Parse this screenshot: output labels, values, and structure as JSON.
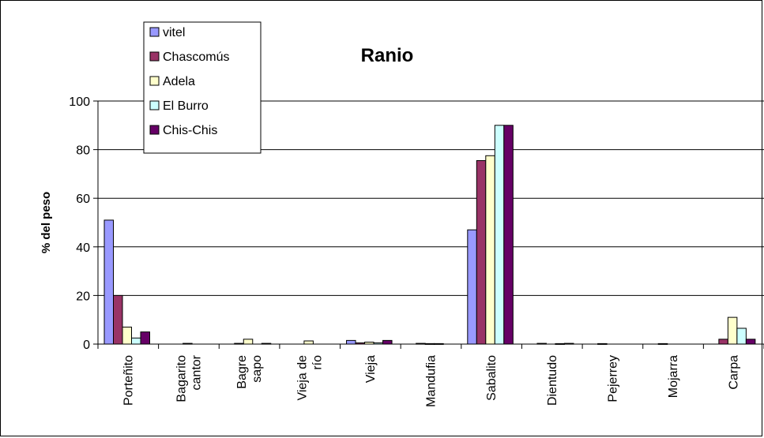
{
  "chart_data": {
    "type": "bar",
    "title": "Ranio",
    "xlabel": "",
    "ylabel": "% del peso",
    "ylim": [
      0,
      100
    ],
    "yticks": [
      0,
      20,
      40,
      60,
      80,
      100
    ],
    "grid": true,
    "legend_position": "top-left",
    "categories": [
      [
        "Porteñito"
      ],
      [
        "Bagarito",
        "cantor"
      ],
      [
        "Bagre",
        "sapo"
      ],
      [
        "Vieja de",
        "río"
      ],
      [
        "Vieja"
      ],
      [
        "Mandufia"
      ],
      [
        "Sabalito"
      ],
      [
        "Dientudo"
      ],
      [
        "Pejerrey"
      ],
      [
        "Mojarra"
      ],
      [
        "Carpa"
      ]
    ],
    "series": [
      {
        "name": "vitel",
        "color": "#9999ff",
        "values": [
          51,
          0,
          0,
          0,
          1.5,
          0,
          47,
          0,
          0,
          0,
          0
        ]
      },
      {
        "name": "Chascomús",
        "color": "#993366",
        "values": [
          20,
          0,
          0.3,
          0,
          0.5,
          0.3,
          75.5,
          0.3,
          0.2,
          0.2,
          2
        ]
      },
      {
        "name": "Adela",
        "color": "#ffffcc",
        "values": [
          7,
          0.3,
          2,
          1.3,
          0.8,
          0.2,
          77.5,
          0,
          0,
          0,
          11
        ]
      },
      {
        "name": "El Burro",
        "color": "#ccffff",
        "values": [
          2.5,
          0,
          0,
          0,
          0.5,
          0.2,
          90,
          0.2,
          0,
          0,
          6.5
        ]
      },
      {
        "name": "Chis-Chis",
        "color": "#660066",
        "values": [
          5,
          0,
          0.3,
          0,
          1.5,
          0,
          90,
          0.3,
          0,
          0,
          2
        ]
      }
    ]
  }
}
